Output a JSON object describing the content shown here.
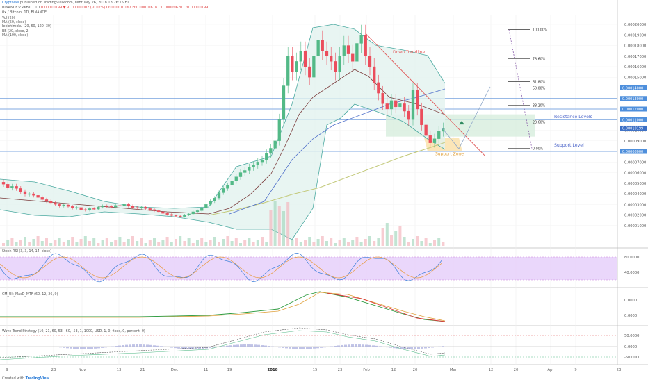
{
  "header": {
    "line1_author": "CryptoWil",
    "line1_rest": "published on TradingView.com, February 26, 2018 13:26:15 ET",
    "line2_symbol": "BINANCE:ZRXBTC, 1D",
    "line2_ohlc": "0.00010199 ▼ -0.00000002 (-0.02%) O:0.00010167 H:0.00010618 L:0.00009620 C:0.00010199"
  },
  "title": "0x / Bitcoin, 1D, BINANCE",
  "indicator_legend": [
    "Vol (20)",
    "MA (50, close)",
    "Ieeichimoku (20, 60, 120, 30)",
    "BB (20, close, 2)",
    "MA (100, close)"
  ],
  "price_axis": {
    "ticks": [
      "0.00020000",
      "0.00019000",
      "0.00018000",
      "0.00017000",
      "0.00016000",
      "0.00015000",
      "0.00014000",
      "0.00013000",
      "0.00012000",
      "0.00011000",
      "0.00010000",
      "0.00009000",
      "0.00008000",
      "0.00007000",
      "0.00006000",
      "0.00005000",
      "0.00004000",
      "0.00003000",
      "0.00002000",
      "0.00001000"
    ],
    "highlighted": [
      "0.00014000",
      "0.00013000",
      "0.00012000",
      "0.00011000",
      "0.00010199",
      "0.00008000"
    ]
  },
  "annotations": {
    "down_trendline": "Down Trendline",
    "resistance_levels": "Resistance Levels",
    "support_level": "Support Level",
    "support_zone": "Support Zone"
  },
  "fib_levels": [
    {
      "label": "100.00%",
      "price": 0.000195
    },
    {
      "label": "78.60%",
      "price": 0.0001675
    },
    {
      "label": "61.80%",
      "price": 0.000146
    },
    {
      "label": "50.00%",
      "price": 0.00014
    },
    {
      "label": "38.20%",
      "price": 0.0001235
    },
    {
      "label": "23.60%",
      "price": 0.000108
    },
    {
      "label": "0.00%",
      "price": 8.3e-05
    }
  ],
  "stoch_rsi": {
    "label": "Stoch RSI (3, 3, 14, 14, close)",
    "ticks": [
      "80.0000",
      "40.0000"
    ]
  },
  "macd": {
    "label": "CM_Ult_MacD_MTF (60, 12, 26, 9)",
    "ticks": [
      "0.0000",
      "0.0000"
    ]
  },
  "wavetrend": {
    "label": "Wave Trend Strategy (10, 21, 60, 53, -60, -53, 1, 1000, USD, 1, 0, fixed, 0, percent, 0)",
    "ticks": [
      "50.0000",
      "0.0000",
      "-50.0000"
    ]
  },
  "time_axis": [
    "9",
    "23",
    "Nov",
    "13",
    "21",
    "Dec",
    "11",
    "19",
    "2018",
    "15",
    "23",
    "Feb",
    "12",
    "20",
    "Mar",
    "12",
    "20",
    "Apr",
    "9",
    "23"
  ],
  "footer": {
    "created_with": "Created with",
    "brand": "TradingView"
  },
  "colors": {
    "up": "#53b987",
    "down": "#eb4d5c",
    "resistance_line": "#5a8fd8",
    "trendline": "#e05757",
    "ma100": "#c3c97a",
    "stoch_band": "#e8d3fb",
    "support_zone": "#fbe3b0",
    "resistance_zone": "#d7eedd"
  },
  "chart_data": {
    "type": "candlestick",
    "symbol": "ZRXBTC",
    "interval": "1D",
    "closes_btc": [
      4.9e-05,
      4.55e-05,
      4.7e-05,
      4.5e-05,
      4.2e-05,
      3.95e-05,
      4e-05,
      3.85e-05,
      3.65e-05,
      3.45e-05,
      3.3e-05,
      3.15e-05,
      3e-05,
      2.85e-05,
      2.95e-05,
      2.8e-05,
      2.65e-05,
      2.7e-05,
      2.5e-05,
      2.45e-05,
      2.6e-05,
      2.55e-05,
      2.75e-05,
      2.85e-05,
      2.8e-05,
      2.75e-05,
      2.9e-05,
      2.85e-05,
      3e-05,
      2.85e-05,
      2.7e-05,
      2.65e-05,
      2.75e-05,
      2.6e-05,
      2.5e-05,
      2.4e-05,
      2.3e-05,
      2.15e-05,
      2.05e-05,
      1.95e-05,
      1.9e-05,
      1.85e-05,
      2e-05,
      2.1e-05,
      2.3e-05,
      2.4e-05,
      2.65e-05,
      3e-05,
      3.3e-05,
      3.6e-05,
      4.1e-05,
      4.5e-05,
      4.8e-05,
      5.2e-05,
      5.6e-05,
      6e-05,
      6.2e-05,
      6.5e-05,
      6.7e-05,
      7e-05,
      7.2e-05,
      7.8e-05,
      8.3e-05,
      9e-05,
      0.00011,
      0.000142,
      0.00017,
      0.000155,
      0.000165,
      0.000175,
      0.00016,
      0.00015,
      0.00017,
      0.000185,
      0.000175,
      0.00017,
      0.000165,
      0.000155,
      0.00017,
      0.00018,
      0.000172,
      0.000165,
      0.000182,
      0.00019,
      0.00017,
      0.00016,
      0.000145,
      0.000135,
      0.000125,
      0.00012,
      0.000128,
      0.000122,
      0.000125,
      0.000118,
      0.00011,
      0.000138,
      0.00012,
      0.000105,
      9.5e-05,
      8.8e-05,
      9.2e-05,
      9.9e-05,
      0.000102
    ]
  }
}
